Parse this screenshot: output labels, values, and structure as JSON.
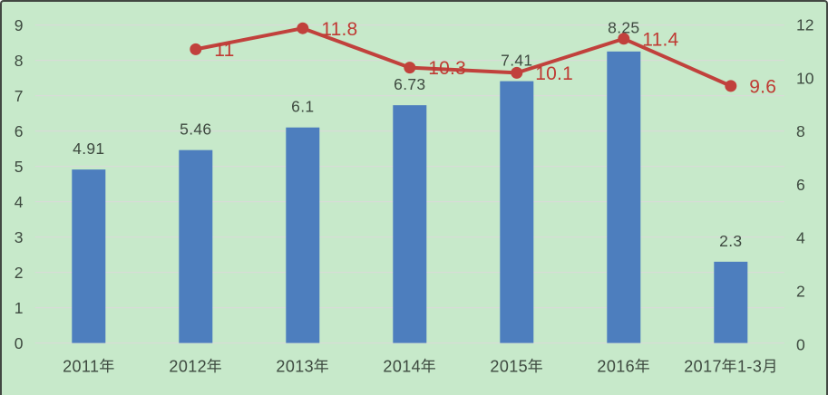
{
  "chart_data": {
    "type": "combo",
    "categories": [
      "2011年",
      "2012年",
      "2013年",
      "2014年",
      "2015年",
      "2016年",
      "2017年1-3月"
    ],
    "series": [
      {
        "type": "bar",
        "axis": "left",
        "values": [
          4.91,
          5.46,
          6.1,
          6.73,
          7.41,
          8.25,
          2.3
        ],
        "labels": [
          "4.91",
          "5.46",
          "6.1",
          "6.73",
          "7.41",
          "8.25",
          "2.3"
        ],
        "color": "#4d7ebe"
      },
      {
        "type": "line",
        "axis": "right",
        "values": [
          null,
          11,
          11.8,
          10.3,
          10.1,
          11.4,
          9.6
        ],
        "labels": [
          "",
          "11",
          "11.8",
          "10.3",
          "10.1",
          "11.4",
          "9.6"
        ],
        "color": "#c1413c",
        "label_color": "#bf3a33"
      }
    ],
    "left_axis": {
      "min": 0,
      "max": 9,
      "step": 1,
      "ticks": [
        "0",
        "1",
        "2",
        "3",
        "4",
        "5",
        "6",
        "7",
        "8",
        "9"
      ]
    },
    "right_axis": {
      "min": 0,
      "max": 12,
      "step": 2,
      "ticks": [
        "0",
        "2",
        "4",
        "6",
        "8",
        "10",
        "12"
      ]
    },
    "grid": true,
    "legend": false,
    "title": "",
    "background_color": "#c7e9ca",
    "gridline_color": "#d9d9d9",
    "axis_text_color": "#3e4a40",
    "bar_label_color": "#3e4a40",
    "border_color": "#424742"
  }
}
